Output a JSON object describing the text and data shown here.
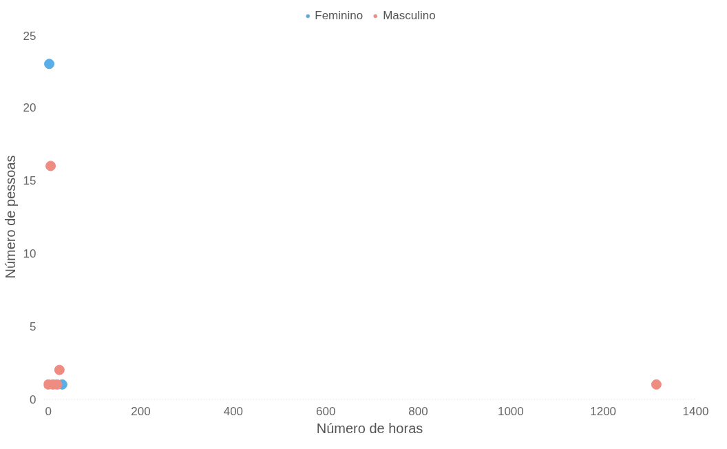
{
  "chart_data": {
    "type": "scatter",
    "xlabel": "Número de horas",
    "ylabel": "Número de pessoas",
    "xlim": [
      -10,
      1400
    ],
    "ylim": [
      0,
      25
    ],
    "xticks": [
      0,
      200,
      400,
      600,
      800,
      1000,
      1200,
      1400
    ],
    "yticks": [
      0,
      5,
      10,
      15,
      20,
      25
    ],
    "legend": "top",
    "grid": false,
    "marker": "circle",
    "series": [
      {
        "name": "Feminino",
        "color": "#5aaee8",
        "x": [
          2,
          30
        ],
        "values": [
          23,
          1
        ]
      },
      {
        "name": "Masculino",
        "color": "#ee8c82",
        "x": [
          5,
          24,
          0,
          10,
          19,
          1315
        ],
        "values": [
          16,
          2,
          1,
          1,
          1,
          1
        ]
      }
    ]
  }
}
